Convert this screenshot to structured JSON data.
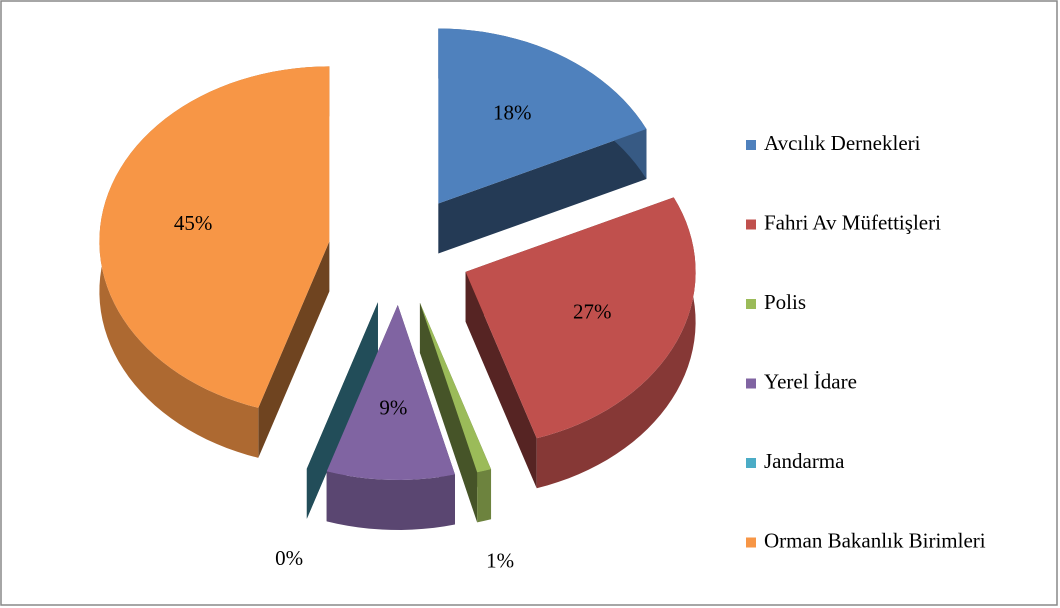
{
  "chart_data": {
    "type": "pie",
    "categories": [
      "Avcılık Dernekleri",
      "Fahri Av Müfettişleri",
      "Polis",
      "Yerel İdare",
      "Jandarma",
      "Orman Bakanlık Birimleri"
    ],
    "values": [
      18,
      27,
      1,
      9,
      0,
      45
    ],
    "value_labels": [
      "18%",
      "27%",
      "1%",
      "9%",
      "0%",
      "45%"
    ],
    "colors": [
      "#4f81bd",
      "#c0504d",
      "#9bbb59",
      "#8064a2",
      "#4bacc6",
      "#f79646"
    ],
    "legend": "right"
  }
}
